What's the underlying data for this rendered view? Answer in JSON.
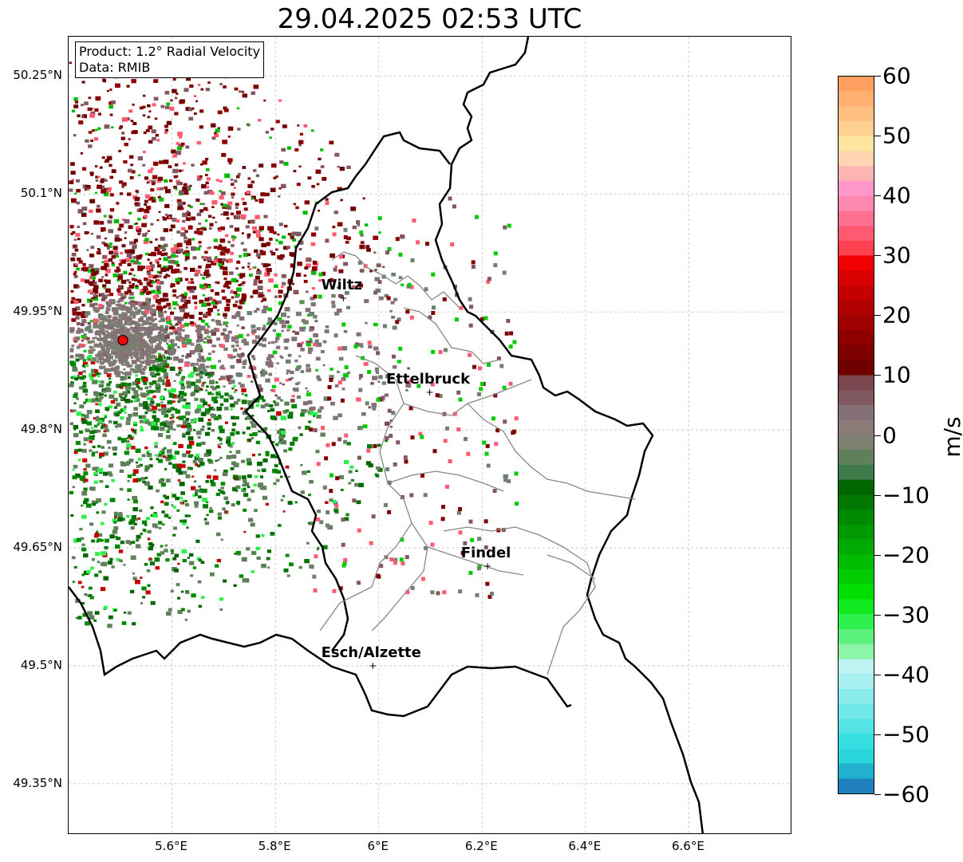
{
  "title": "29.04.2025 02:53 UTC",
  "infobox": {
    "product": "Product: 1.2° Radial Velocity",
    "data": "Data: RMIB"
  },
  "map": {
    "lat_range": [
      49.285,
      50.3
    ],
    "lon_range": [
      5.4,
      6.8
    ],
    "lat_ticks": [
      "50.25°N",
      "50.1°N",
      "49.95°N",
      "49.8°N",
      "49.65°N",
      "49.5°N",
      "49.35°N"
    ],
    "lon_ticks": [
      "5.6°E",
      "5.8°E",
      "6°E",
      "6.2°E",
      "6.4°E",
      "6.6°E"
    ],
    "grid": true,
    "radar_site": {
      "lon": 5.505,
      "lat": 49.914,
      "color": "#ff0000"
    },
    "cities": [
      {
        "name": "Wiltz",
        "lon": 5.933,
        "lat": 49.966
      },
      {
        "name": "Ettelbruck",
        "lon": 6.1,
        "lat": 49.847
      },
      {
        "name": "Findel",
        "lon": 6.212,
        "lat": 49.626
      },
      {
        "name": "Esch/Alzette",
        "lon": 5.99,
        "lat": 49.499
      }
    ]
  },
  "colorbar": {
    "unit": "m/s",
    "range": [
      -60,
      60
    ],
    "tick_labels": [
      "60",
      "50",
      "40",
      "30",
      "20",
      "10",
      "0",
      "−10",
      "−20",
      "−30",
      "−40",
      "−50",
      "−60"
    ],
    "colors_bottom_to_top": [
      "#1f7fbf",
      "#22b0d0",
      "#2ad6dc",
      "#35dfe0",
      "#55e4e4",
      "#70e8e8",
      "#8aebeb",
      "#a8efef",
      "#bff2f2",
      "#8df5a8",
      "#5bf07c",
      "#2ef04c",
      "#10e820",
      "#00de00",
      "#00cc00",
      "#00bb00",
      "#00aa00",
      "#009900",
      "#008800",
      "#007700",
      "#006600",
      "#3f7a4a",
      "#5f805a",
      "#7b8070",
      "#8a7a78",
      "#857078",
      "#805860",
      "#7a4650",
      "#6e0000",
      "#7e0000",
      "#8e0000",
      "#9e0000",
      "#b00000",
      "#c40000",
      "#d80000",
      "#f00000",
      "#ff4050",
      "#ff5a70",
      "#ff7090",
      "#ff88b0",
      "#ff98c8",
      "#ffb4b4",
      "#ffd4b0",
      "#ffe4a0",
      "#ffd090",
      "#ffc080",
      "#ffb070",
      "#ffa060"
    ]
  }
}
